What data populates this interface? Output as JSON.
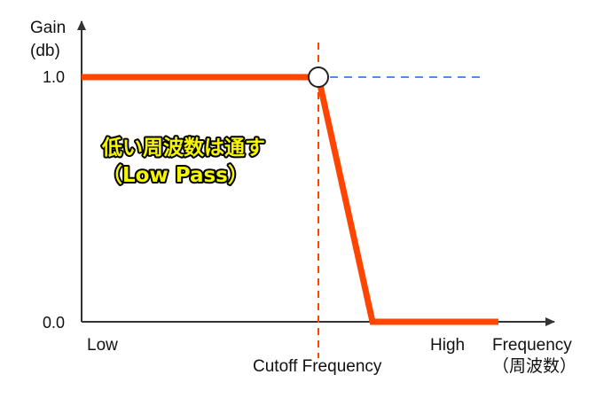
{
  "diagram": {
    "y_axis_label_line1": "Gain",
    "y_axis_label_line2": "(db)",
    "y_tick_high": "1.0",
    "y_tick_low": "0.0",
    "x_axis_label_line1": "Frequency",
    "x_axis_label_line2": "（周波数）",
    "x_low_label": "Low",
    "x_high_label": "High",
    "cutoff_label": "Cutoff Frequency",
    "callout_line1": "低い周波数は通す",
    "callout_line2": "（Low Pass）",
    "colors": {
      "response_line": "#ff4500",
      "cutoff_line": "#ff4500",
      "ideal_extension": "#4d8ff0",
      "axis": "#333333",
      "callout_fill": "#f5f500",
      "callout_outline": "#000000"
    }
  }
}
